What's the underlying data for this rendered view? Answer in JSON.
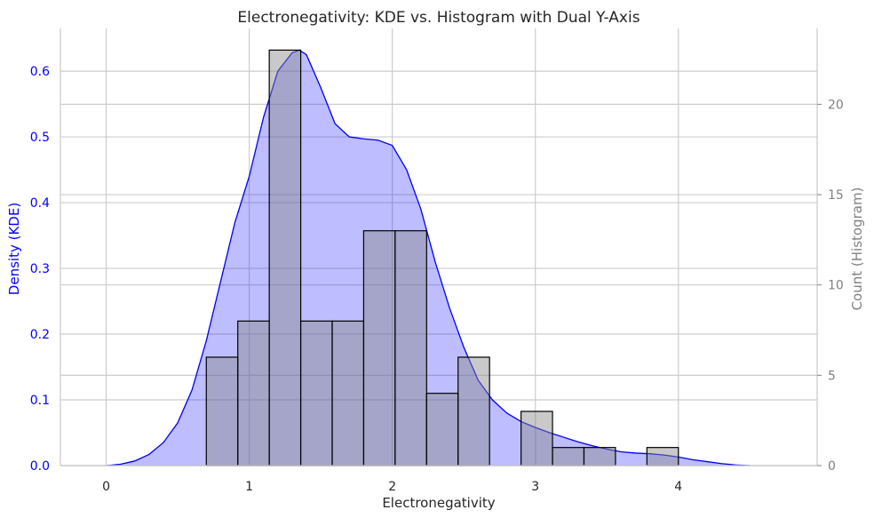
{
  "chart_data": {
    "type": "histogram",
    "title": "Electronegativity: KDE vs. Histogram with Dual Y-Axis",
    "xlabel": "Electronegativity",
    "y1label": "Density (KDE)",
    "y2label": "Count (Histogram)",
    "xlim": [
      -0.32,
      4.97
    ],
    "x_ticks": [
      0,
      1,
      2,
      3,
      4
    ],
    "y1lim": [
      0,
      0.665
    ],
    "y1_ticks": [
      0.0,
      0.1,
      0.2,
      0.3,
      0.4,
      0.5,
      0.6
    ],
    "y2lim": [
      0,
      24.2
    ],
    "y2_ticks": [
      0,
      5,
      10,
      15,
      20
    ],
    "grid": true,
    "colors": {
      "kde_line": "#0000ee",
      "kde_fill": "#0000ff",
      "hist_fill": "#888888",
      "hist_edge": "#000000",
      "left_axis": "#0000ff",
      "right_axis": "#808080",
      "grid": "#cccccc"
    },
    "histogram": {
      "bin_edges": [
        0.7,
        0.92,
        1.14,
        1.36,
        1.58,
        1.8,
        2.02,
        2.24,
        2.46,
        2.68,
        2.9,
        3.12,
        3.34,
        3.56,
        3.78,
        4.0
      ],
      "counts": [
        6,
        8,
        23,
        8,
        8,
        13,
        13,
        4,
        6,
        0,
        3,
        1,
        1,
        0,
        1
      ]
    },
    "kde": {
      "x": [
        0.0,
        0.1,
        0.2,
        0.3,
        0.4,
        0.5,
        0.6,
        0.7,
        0.8,
        0.9,
        1.0,
        1.1,
        1.2,
        1.3,
        1.35,
        1.4,
        1.5,
        1.6,
        1.7,
        1.8,
        1.9,
        2.0,
        2.1,
        2.2,
        2.3,
        2.4,
        2.5,
        2.6,
        2.7,
        2.8,
        2.9,
        3.0,
        3.1,
        3.2,
        3.3,
        3.4,
        3.5,
        3.6,
        3.7,
        3.8,
        3.9,
        4.0,
        4.1,
        4.2,
        4.3,
        4.4,
        4.5
      ],
      "y": [
        0.0,
        0.002,
        0.007,
        0.017,
        0.035,
        0.065,
        0.115,
        0.19,
        0.28,
        0.37,
        0.44,
        0.53,
        0.6,
        0.628,
        0.632,
        0.625,
        0.575,
        0.52,
        0.5,
        0.497,
        0.495,
        0.487,
        0.45,
        0.39,
        0.31,
        0.24,
        0.18,
        0.13,
        0.1,
        0.08,
        0.067,
        0.058,
        0.05,
        0.043,
        0.036,
        0.03,
        0.025,
        0.021,
        0.019,
        0.018,
        0.016,
        0.013,
        0.009,
        0.006,
        0.003,
        0.001,
        0.0
      ]
    }
  }
}
